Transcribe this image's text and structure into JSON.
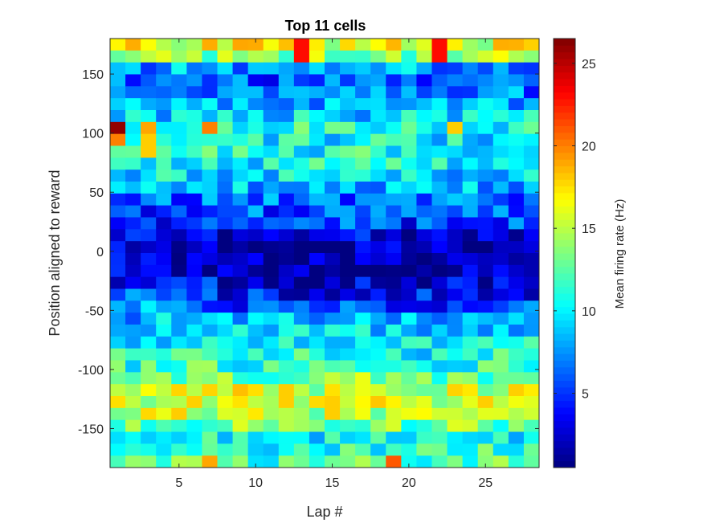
{
  "chart_data": {
    "type": "heatmap",
    "title": "Top 11 cells",
    "xlabel": "Lap #",
    "ylabel": "Position aligned to reward",
    "colorbar_label": "Mean firing rate (Hz)",
    "colormap": "jet",
    "x_range": [
      0.5,
      28.5
    ],
    "y_range": [
      -183,
      180
    ],
    "x_ticks": [
      5,
      10,
      15,
      20,
      25
    ],
    "y_ticks": [
      150,
      100,
      50,
      0,
      -50,
      -100,
      -150
    ],
    "c_range": [
      0.5,
      26.5
    ],
    "c_ticks": [
      5,
      10,
      15,
      20,
      25
    ],
    "laps": 28,
    "position_bins": 36,
    "profile_positions": [
      175,
      165,
      150,
      125,
      105,
      95,
      80,
      60,
      40,
      20,
      0,
      -20,
      -40,
      -60,
      -80,
      -100,
      -120,
      -140,
      -160,
      -175
    ],
    "profile_rates": [
      16,
      14,
      5,
      8,
      11,
      10,
      11,
      9,
      6,
      5,
      2.5,
      3,
      6,
      9,
      10,
      12,
      16,
      15,
      10,
      12
    ],
    "hotspots": [
      {
        "lap": 1,
        "position": 105,
        "rate": 26
      },
      {
        "lap": 1,
        "position": 95,
        "rate": 20
      },
      {
        "lap": 3,
        "position": 105,
        "rate": 19
      },
      {
        "lap": 3,
        "position": 90,
        "rate": 18
      },
      {
        "lap": 7,
        "position": 105,
        "rate": 20
      },
      {
        "lap": 13,
        "position": 170,
        "rate": 23
      },
      {
        "lap": 22,
        "position": 170,
        "rate": 23
      },
      {
        "lap": 9,
        "position": 175,
        "rate": 19
      },
      {
        "lap": 23,
        "position": 105,
        "rate": 18
      },
      {
        "lap": 19,
        "position": -178,
        "rate": 21
      },
      {
        "lap": 12,
        "position": -125,
        "rate": 18
      },
      {
        "lap": 15,
        "position": -132,
        "rate": 18
      },
      {
        "lap": 7,
        "position": -178,
        "rate": 19
      }
    ]
  }
}
